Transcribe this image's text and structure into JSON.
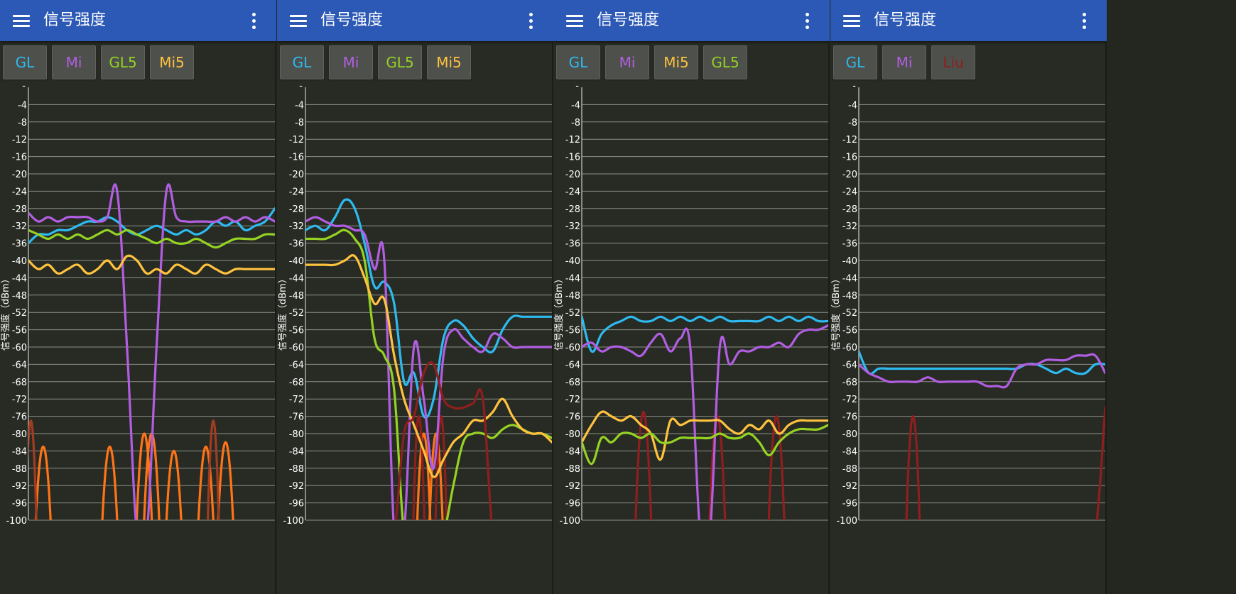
{
  "app": {
    "title": "信号强度"
  },
  "colors": {
    "GL": "#2ebaf0",
    "Mi": "#b25ee2",
    "GL5": "#95d224",
    "Mi5": "#ffc23f",
    "Liu": "#8f1f1f",
    "orange": "#ff7417",
    "darkred": "#8f1f1f",
    "brown": "#a13c22"
  },
  "panels": [
    {
      "name": "panel-1",
      "filters": [
        {
          "label": "GL",
          "color": "#2ebaf0"
        },
        {
          "label": "Mi",
          "color": "#b25ee2"
        },
        {
          "label": "GL5",
          "color": "#95d224"
        },
        {
          "label": "Mi5",
          "color": "#ffc23f"
        }
      ]
    },
    {
      "name": "panel-2",
      "filters": [
        {
          "label": "GL",
          "color": "#2ebaf0"
        },
        {
          "label": "Mi",
          "color": "#b25ee2"
        },
        {
          "label": "GL5",
          "color": "#95d224"
        },
        {
          "label": "Mi5",
          "color": "#ffc23f"
        }
      ]
    },
    {
      "name": "panel-3",
      "filters": [
        {
          "label": "GL",
          "color": "#2ebaf0"
        },
        {
          "label": "Mi",
          "color": "#b25ee2"
        },
        {
          "label": "Mi5",
          "color": "#ffc23f"
        },
        {
          "label": "GL5",
          "color": "#95d224"
        }
      ]
    },
    {
      "name": "panel-4",
      "filters": [
        {
          "label": "GL",
          "color": "#2ebaf0"
        },
        {
          "label": "Mi",
          "color": "#b25ee2"
        },
        {
          "label": "Liu",
          "color": "#8f1f1f"
        }
      ]
    }
  ],
  "chart_data": [
    {
      "type": "line",
      "ylabel": "信号强度（dBm）",
      "ylim": [
        -100,
        0
      ],
      "yticks": [
        -4,
        -8,
        -12,
        -16,
        -20,
        -24,
        -28,
        -32,
        -36,
        -40,
        -44,
        -48,
        -52,
        -56,
        -60,
        -64,
        -68,
        -72,
        -76,
        -80,
        -84,
        -88,
        -92,
        -96,
        -100
      ],
      "x": [
        0,
        4,
        8,
        12,
        16,
        20,
        24,
        28,
        32,
        36,
        40,
        44,
        48,
        52,
        56,
        60,
        64,
        68,
        72,
        76,
        80,
        84,
        88,
        92,
        96,
        100
      ],
      "series": [
        {
          "name": "GL",
          "color": "#2ebaf0",
          "y": [
            -36,
            -34,
            -34,
            -33,
            -33,
            -32,
            -31,
            -31,
            -30,
            -31,
            -33,
            -34,
            -33,
            -32,
            -33,
            -34,
            -33,
            -34,
            -33,
            -31,
            -32,
            -31,
            -33,
            -32,
            -31,
            -28
          ]
        },
        {
          "name": "Mi",
          "color": "#b25ee2",
          "y": [
            -29,
            -31,
            -30,
            -31,
            -30,
            -30,
            -30,
            -31,
            -30,
            -24,
            -60,
            -100,
            -100,
            -60,
            -24,
            -30,
            -31,
            -31,
            -31,
            -31,
            -30,
            -31,
            -30,
            -31,
            -30,
            -31
          ]
        },
        {
          "name": "GL5",
          "color": "#95d224",
          "y": [
            -33,
            -34,
            -35,
            -34,
            -35,
            -34,
            -35,
            -34,
            -33,
            -34,
            -33,
            -34,
            -35,
            -36,
            -35,
            -36,
            -36,
            -35,
            -36,
            -37,
            -36,
            -35,
            -35,
            -35,
            -34,
            -34
          ]
        },
        {
          "name": "Mi5",
          "color": "#ffc23f",
          "y": [
            -40,
            -42,
            -41,
            -43,
            -42,
            -41,
            -43,
            -42,
            -40,
            -42,
            -39,
            -40,
            -43,
            -42,
            -43,
            -41,
            -42,
            -43,
            -41,
            -42,
            -43,
            -42,
            -42,
            -42,
            -42,
            -42
          ]
        }
      ],
      "bumps": [
        {
          "color": "#ff7417",
          "peaks": [
            [
              6,
              -83
            ],
            [
              33,
              -83
            ],
            [
              47,
              -80
            ],
            [
              50,
              -80
            ],
            [
              59,
              -84
            ],
            [
              72,
              -83
            ],
            [
              80,
              -82
            ]
          ],
          "width": 3.5
        },
        {
          "color": "#a13c22",
          "peaks": [
            [
              1,
              -77
            ],
            [
              75,
              -77
            ]
          ],
          "width": 2.5
        }
      ]
    },
    {
      "type": "line",
      "ylabel": "信号强度（dBm）",
      "ylim": [
        -100,
        0
      ],
      "yticks": [
        -4,
        -8,
        -12,
        -16,
        -20,
        -24,
        -28,
        -32,
        -36,
        -40,
        -44,
        -48,
        -52,
        -56,
        -60,
        -64,
        -68,
        -72,
        -76,
        -80,
        -84,
        -88,
        -92,
        -96,
        -100
      ],
      "x": [
        0,
        4,
        8,
        12,
        16,
        20,
        24,
        28,
        32,
        36,
        40,
        44,
        48,
        52,
        56,
        60,
        64,
        68,
        72,
        76,
        80,
        84,
        88,
        92,
        96,
        100
      ],
      "series": [
        {
          "name": "GL",
          "color": "#2ebaf0",
          "y": [
            -33,
            -32,
            -33,
            -30,
            -26,
            -28,
            -36,
            -46,
            -45,
            -50,
            -68,
            -66,
            -76,
            -72,
            -58,
            -54,
            -55,
            -58,
            -60,
            -61,
            -56,
            -53,
            -53,
            -53,
            -53,
            -53
          ]
        },
        {
          "name": "Mi",
          "color": "#b25ee2",
          "y": [
            -31,
            -30,
            -31,
            -32,
            -32,
            -33,
            -34,
            -42,
            -40,
            -100,
            -100,
            -60,
            -72,
            -88,
            -62,
            -56,
            -58,
            -60,
            -61,
            -57,
            -58,
            -60,
            -60,
            -60,
            -60,
            -60
          ]
        },
        {
          "name": "GL5",
          "color": "#95d224",
          "y": [
            -35,
            -35,
            -35,
            -34,
            -33,
            -35,
            -40,
            -58,
            -62,
            -70,
            -100,
            -100,
            -100,
            -100,
            -100,
            -92,
            -82,
            -80,
            -80,
            -81,
            -79,
            -78,
            -79,
            -80,
            -80,
            -81
          ]
        },
        {
          "name": "Mi5",
          "color": "#ffc23f",
          "y": [
            -41,
            -41,
            -41,
            -41,
            -40,
            -39,
            -44,
            -50,
            -49,
            -62,
            -72,
            -78,
            -84,
            -90,
            -86,
            -82,
            -80,
            -77,
            -77,
            -75,
            -72,
            -76,
            -79,
            -80,
            -80,
            -82
          ]
        },
        {
          "name": "Liu",
          "color": "#8f1f1f",
          "y": [
            -100,
            -100,
            -100,
            -100,
            -100,
            -100,
            -100,
            -100,
            -100,
            -100,
            -80,
            -76,
            -66,
            -64,
            -72,
            -74,
            -74,
            -73,
            -72,
            -100,
            -100,
            -100,
            -100,
            -100,
            -100,
            -100
          ]
        }
      ],
      "bumps": [
        {
          "color": "#ff7417",
          "peaks": [
            [
              48,
              -80
            ],
            [
              53,
              -80
            ]
          ],
          "width": 3
        },
        {
          "color": "#8f1f1f",
          "peaks": [
            [
              46,
              -76
            ],
            [
              55,
              -76
            ]
          ],
          "width": 2.5
        }
      ]
    },
    {
      "type": "line",
      "ylabel": "信号强度（dBm）",
      "ylim": [
        -100,
        0
      ],
      "yticks": [
        -4,
        -8,
        -12,
        -16,
        -20,
        -24,
        -28,
        -32,
        -36,
        -40,
        -44,
        -48,
        -52,
        -56,
        -60,
        -64,
        -68,
        -72,
        -76,
        -80,
        -84,
        -88,
        -92,
        -96,
        -100
      ],
      "x": [
        0,
        4,
        8,
        12,
        16,
        20,
        24,
        28,
        32,
        36,
        40,
        44,
        48,
        52,
        56,
        60,
        64,
        68,
        72,
        76,
        80,
        84,
        88,
        92,
        96,
        100
      ],
      "series": [
        {
          "name": "GL",
          "color": "#2ebaf0",
          "y": [
            -53,
            -61,
            -57,
            -55,
            -54,
            -53,
            -54,
            -54,
            -53,
            -54,
            -53,
            -54,
            -53,
            -54,
            -53,
            -54,
            -54,
            -54,
            -54,
            -53,
            -54,
            -53,
            -54,
            -53,
            -54,
            -54
          ]
        },
        {
          "name": "Mi",
          "color": "#b25ee2",
          "y": [
            -60,
            -59,
            -61,
            -60,
            -60,
            -61,
            -62,
            -59,
            -57,
            -61,
            -58,
            -60,
            -100,
            -100,
            -60,
            -64,
            -61,
            -61,
            -60,
            -60,
            -59,
            -60,
            -57,
            -56,
            -56,
            -55
          ]
        },
        {
          "name": "Mi5",
          "color": "#ffc23f",
          "y": [
            -82,
            -78,
            -75,
            -76,
            -77,
            -76,
            -78,
            -80,
            -86,
            -77,
            -78,
            -77,
            -77,
            -77,
            -77,
            -79,
            -80,
            -78,
            -79,
            -77,
            -80,
            -78,
            -77,
            -77,
            -77,
            -77
          ]
        },
        {
          "name": "GL5",
          "color": "#95d224",
          "y": [
            -82,
            -87,
            -81,
            -82,
            -80,
            -80,
            -81,
            -80,
            -82,
            -82,
            -81,
            -81,
            -81,
            -81,
            -80,
            -81,
            -81,
            -80,
            -82,
            -85,
            -82,
            -80,
            -79,
            -79,
            -79,
            -78
          ]
        }
      ],
      "bumps": [
        {
          "color": "#8f1f1f",
          "peaks": [
            [
              25,
              -75
            ],
            [
              55,
              -76
            ],
            [
              79,
              -76
            ]
          ],
          "width": 3.5
        }
      ]
    },
    {
      "type": "line",
      "ylabel": "信号强度（dBm）",
      "ylim": [
        -100,
        0
      ],
      "yticks": [
        -4,
        -8,
        -12,
        -16,
        -20,
        -24,
        -28,
        -32,
        -36,
        -40,
        -44,
        -48,
        -52,
        -56,
        -60,
        -64,
        -68,
        -72,
        -76,
        -80,
        -84,
        -88,
        -92,
        -96,
        -100
      ],
      "x": [
        0,
        4,
        8,
        12,
        16,
        20,
        24,
        28,
        32,
        36,
        40,
        44,
        48,
        52,
        56,
        60,
        64,
        68,
        72,
        76,
        80,
        84,
        88,
        92,
        96,
        100
      ],
      "series": [
        {
          "name": "GL",
          "color": "#2ebaf0",
          "y": [
            -61,
            -66,
            -65,
            -65,
            -65,
            -65,
            -65,
            -65,
            -65,
            -65,
            -65,
            -65,
            -65,
            -65,
            -65,
            -65,
            -65,
            -64,
            -64,
            -65,
            -66,
            -65,
            -66,
            -66,
            -64,
            -64
          ]
        },
        {
          "name": "Mi",
          "color": "#b25ee2",
          "y": [
            -64,
            -66,
            -67,
            -68,
            -68,
            -68,
            -68,
            -67,
            -68,
            -68,
            -68,
            -68,
            -68,
            -69,
            -69,
            -69,
            -65,
            -64,
            -64,
            -63,
            -63,
            -63,
            -62,
            -62,
            -62,
            -66
          ]
        },
        {
          "name": "Liu",
          "color": "#8f1f1f",
          "y": [
            -100,
            -100,
            -100,
            -100,
            -100,
            -100,
            -100,
            -100,
            -100,
            -100,
            -100,
            -100,
            -100,
            -100,
            -100,
            -100,
            -100,
            -100,
            -100,
            -100,
            -100,
            -100,
            -100,
            -100,
            -100,
            -74
          ]
        }
      ],
      "bumps": [
        {
          "color": "#8f1f1f",
          "peaks": [
            [
              22,
              -76
            ]
          ],
          "width": 3
        }
      ]
    }
  ]
}
